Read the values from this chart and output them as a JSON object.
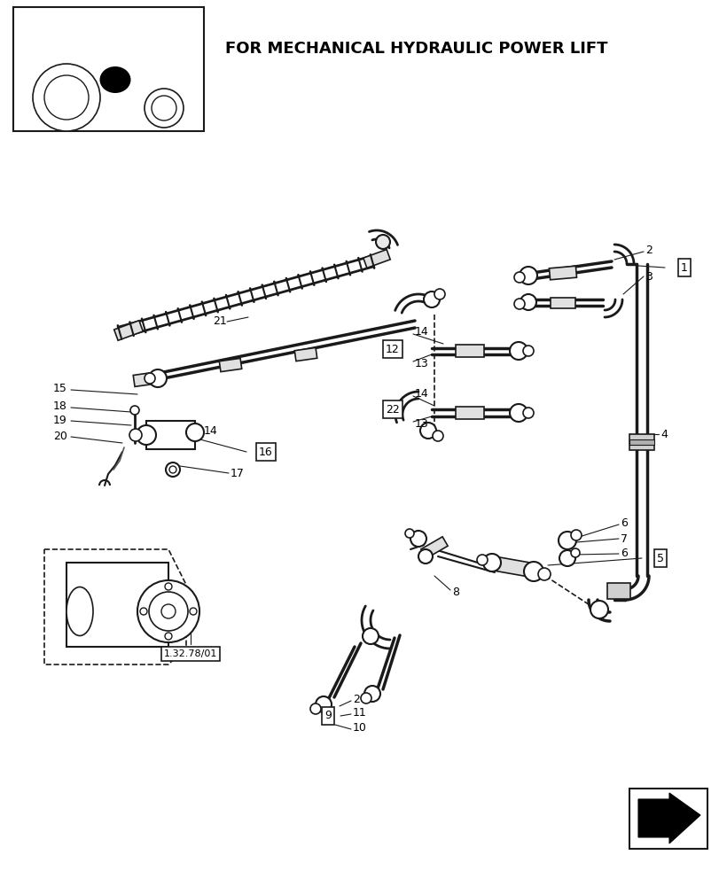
{
  "title": "FOR MECHANICAL HYDRAULIC POWER LIFT",
  "bg": "#ffffff",
  "lc": "#1a1a1a",
  "fig_w": 8.12,
  "fig_h": 10.0,
  "dpi": 100
}
